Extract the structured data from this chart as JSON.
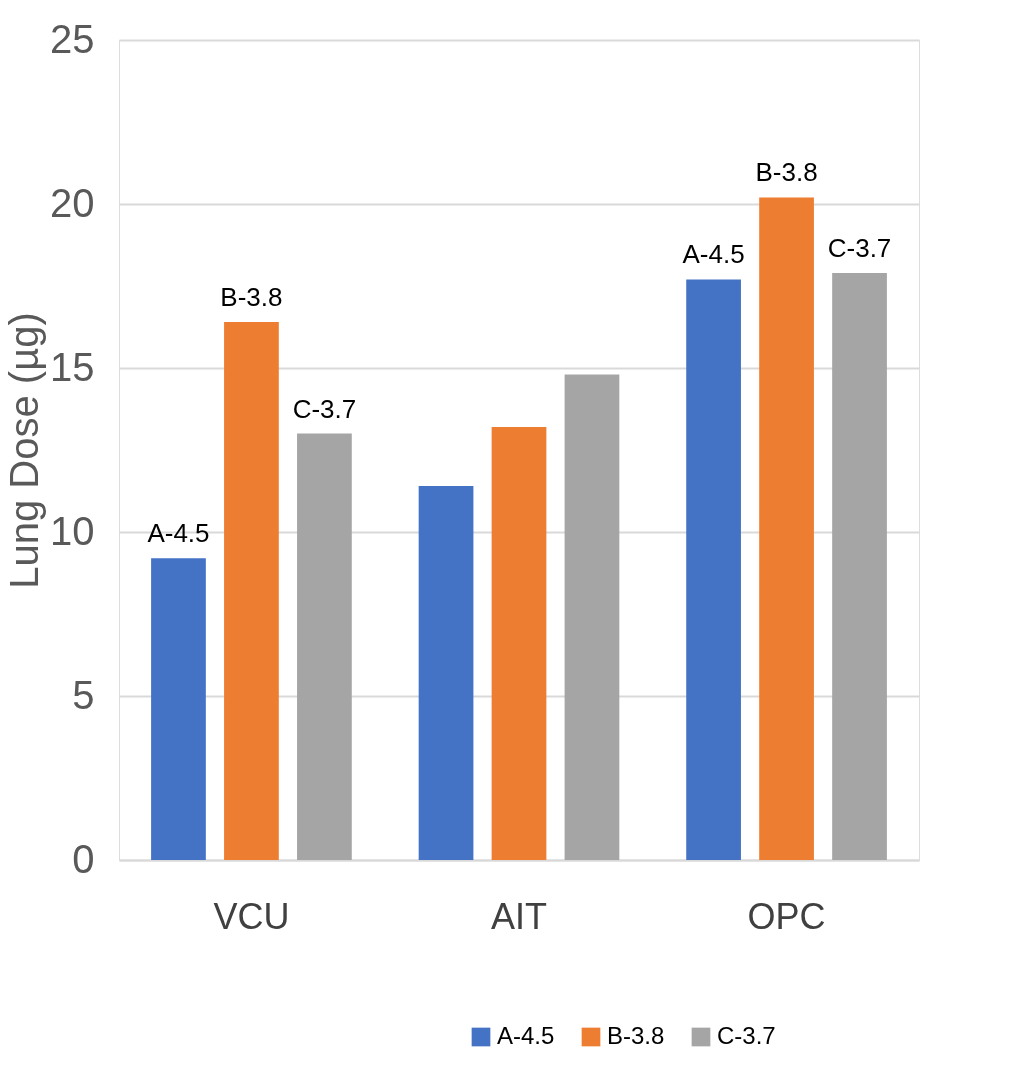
{
  "chart_data": {
    "type": "bar",
    "ylabel": "Lung Dose (µg)",
    "categories": [
      "VCU",
      "AIT",
      "OPC"
    ],
    "series": [
      {
        "name": "A-4.5",
        "color": "#4472c4",
        "values": [
          9.2,
          11.4,
          17.7
        ],
        "value_labels": [
          "A-4.5",
          null,
          "A-4.5"
        ]
      },
      {
        "name": "B-3.8",
        "color": "#ed7d31",
        "values": [
          16.4,
          13.2,
          20.2
        ],
        "value_labels": [
          "B-3.8",
          null,
          "B-3.8"
        ]
      },
      {
        "name": "C-3.7",
        "color": "#a5a5a5",
        "values": [
          13.0,
          14.8,
          17.9
        ],
        "value_labels": [
          "C-3.7",
          null,
          "C-3.7"
        ]
      }
    ],
    "ylim": [
      0,
      25
    ],
    "yticks": [
      0,
      5,
      10,
      15,
      20,
      25
    ],
    "grid": "y",
    "legend": "bottom right"
  }
}
